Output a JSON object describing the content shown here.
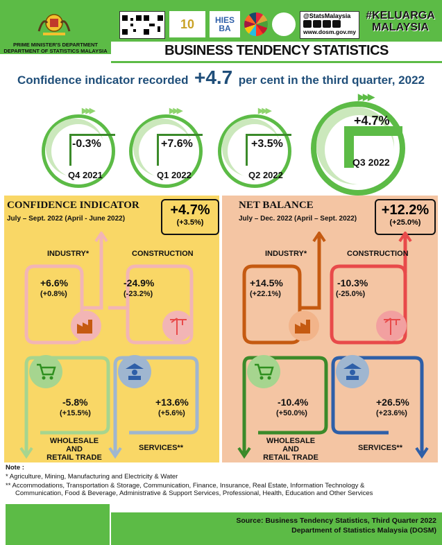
{
  "header": {
    "agency_line1": "PRIME MINISTER'S DEPARTMENT",
    "agency_line2": "DEPARTMENT OF STATISTICS MALAYSIA",
    "social_handle": "@StatsMalaysia",
    "website": "www.dosm.gov.my",
    "keluarga_line1": "#KELUARGA",
    "keluarga_line2": "MALAYSIA",
    "hies_line1": "HIES",
    "hies_line2": "BA",
    "title": "BUSINESS TENDENCY STATISTICS"
  },
  "headline": {
    "prefix": "Confidence indicator recorded",
    "value": "+4.7",
    "suffix": "per cent in the third quarter, 2022"
  },
  "quarters": [
    {
      "value": "-0.3%",
      "label": "Q4 2021"
    },
    {
      "value": "+7.6%",
      "label": "Q1 2022"
    },
    {
      "value": "+3.5%",
      "label": "Q2 2022"
    },
    {
      "value": "+4.7%",
      "label": "Q3 2022"
    }
  ],
  "confidence": {
    "title": "CONFIDENCE INDICATOR",
    "period": "July – Sept. 2022 (April - June 2022)",
    "total": "+4.7%",
    "total_prev": "(+3.5%)",
    "industry": {
      "label": "INDUSTRY*",
      "value": "+6.6%",
      "prev": "(+0.8%)"
    },
    "construction": {
      "label": "CONSTRUCTION",
      "value": "-24.9%",
      "prev": "(-23.2%)"
    },
    "wholesale": {
      "label1": "WHOLESALE AND",
      "label2": "RETAIL TRADE",
      "value": "-5.8%",
      "prev": "(+15.5%)"
    },
    "services": {
      "label": "SERVICES**",
      "value": "+13.6%",
      "prev": "(+5.6%)"
    }
  },
  "net_balance": {
    "title": "NET BALANCE",
    "period": "July – Dec. 2022 (April – Sept. 2022)",
    "total": "+12.2%",
    "total_prev": "(+25.0%)",
    "industry": {
      "label": "INDUSTRY*",
      "value": "+14.5%",
      "prev": "(+22.1%)"
    },
    "construction": {
      "label": "CONSTRUCTION",
      "value": "-10.3%",
      "prev": "(-25.0%)"
    },
    "wholesale": {
      "label1": "WHOLESALE AND",
      "label2": "RETAIL TRADE",
      "value": "-10.4%",
      "prev": "(+50.0%)"
    },
    "services": {
      "label": "SERVICES**",
      "value": "+26.5%",
      "prev": "(+23.6%)"
    }
  },
  "notes": {
    "heading": "Note :",
    "note1": "*   Agriculture, Mining, Manufacturing and  Electricity & Water",
    "note2a": "** Accommodations, Transportation & Storage, Communication, Finance, Insurance, Real Estate, Information Technology &",
    "note2b": "Communication, Food & Beverage, Administrative & Support Services, Professional, Health, Education and Other Services"
  },
  "footer": {
    "source1": "Source: Business Tendency Statistics, Third Quarter 2022",
    "source2": "Department of Statistics Malaysia (DOSM)"
  },
  "colors": {
    "green": "#5cbb46",
    "dark_green": "#2f8f1f",
    "confidence_bg": "#f9d766",
    "netbalance_bg": "#f4c5a3",
    "title_blue": "#1f4e79",
    "industry_orange": "#c55a11",
    "construction_red": "#e84a4a",
    "wholesale_green": "#3b8a2a",
    "services_blue": "#2e5fa8"
  }
}
